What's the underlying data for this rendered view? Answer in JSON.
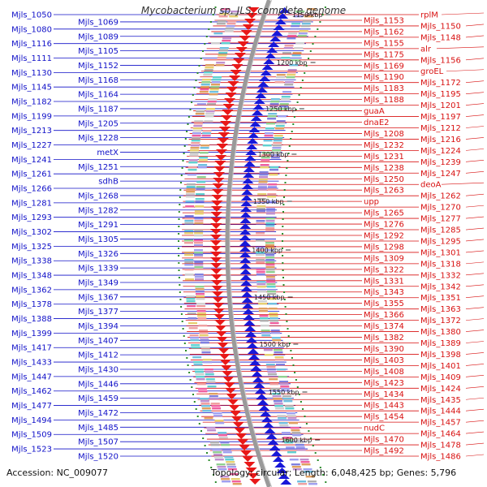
{
  "title": "Mycobacterium sp. JLS, complete genome",
  "footer": {
    "accession": "Accession: NC_009077",
    "summary": "Topology: circular; Length: 6,048,425 bp; Genes: 5,796"
  },
  "colors": {
    "forward": "#e81818",
    "reverse": "#1818d8",
    "leftLabel": "#1010c8",
    "rightLabel": "#d81010",
    "backbone": "#888888",
    "tick": "#2a8a2a"
  },
  "kbp_ticks": [
    "1150 kbp",
    "1200 kbp",
    "1250 kbp",
    "1300 kbp",
    "1350 kbp",
    "1400 kbp",
    "1450 kbp",
    "1500 kbp",
    "1550 kbp",
    "1600 kbp"
  ],
  "left_labels": [
    "Mjls_1050",
    "Mjls_1069",
    "Mjls_1080",
    "Mjls_1089",
    "Mjls_1116",
    "Mjls_1105",
    "Mjls_1111",
    "Mjls_1152",
    "Mjls_1130",
    "Mjls_1168",
    "Mjls_1145",
    "Mjls_1164",
    "Mjls_1182",
    "Mjls_1187",
    "Mjls_1199",
    "Mjls_1205",
    "Mjls_1213",
    "Mjls_1228",
    "Mjls_1227",
    "metX",
    "Mjls_1241",
    "Mjls_1251",
    "Mjls_1261",
    "sdhB",
    "Mjls_1266",
    "Mjls_1268",
    "Mjls_1281",
    "Mjls_1282",
    "Mjls_1293",
    "Mjls_1291",
    "Mjls_1302",
    "Mjls_1305",
    "Mjls_1325",
    "Mjls_1326",
    "Mjls_1338",
    "Mjls_1339",
    "Mjls_1348",
    "Mjls_1349",
    "Mjls_1362",
    "Mjls_1367",
    "Mjls_1378",
    "Mjls_1377",
    "Mjls_1388",
    "Mjls_1394",
    "Mjls_1399",
    "Mjls_1407",
    "Mjls_1417",
    "Mjls_1412",
    "Mjls_1433",
    "Mjls_1430",
    "Mjls_1447",
    "Mjls_1446",
    "Mjls_1462",
    "Mjls_1459",
    "Mjls_1477",
    "Mjls_1472",
    "Mjls_1494",
    "Mjls_1485",
    "Mjls_1509",
    "Mjls_1507",
    "Mjls_1523",
    "Mjls_1520"
  ],
  "right_labels": [
    "rplM",
    "Mjls_1153",
    "Mjls_1150",
    "Mjls_1162",
    "Mjls_1148",
    "Mjls_1155",
    "alr",
    "Mjls_1175",
    "Mjls_1156",
    "Mjls_1169",
    "groEL",
    "Mjls_1190",
    "Mjls_1172",
    "Mjls_1183",
    "Mjls_1195",
    "Mjls_1188",
    "Mjls_1201",
    "guaA",
    "Mjls_1197",
    "dnaE2",
    "Mjls_1212",
    "Mjls_1208",
    "Mjls_1216",
    "Mjls_1232",
    "Mjls_1224",
    "Mjls_1231",
    "Mjls_1239",
    "Mjls_1238",
    "Mjls_1247",
    "Mjls_1250",
    "deoA",
    "Mjls_1263",
    "Mjls_1262",
    "upp",
    "Mjls_1270",
    "Mjls_1265",
    "Mjls_1277",
    "Mjls_1276",
    "Mjls_1285",
    "Mjls_1292",
    "Mjls_1295",
    "Mjls_1298",
    "Mjls_1301",
    "Mjls_1309",
    "Mjls_1318",
    "Mjls_1322",
    "Mjls_1332",
    "Mjls_1331",
    "Mjls_1342",
    "Mjls_1343",
    "Mjls_1351",
    "Mjls_1355",
    "Mjls_1363",
    "Mjls_1366",
    "Mjls_1372",
    "Mjls_1374",
    "Mjls_1380",
    "Mjls_1382",
    "Mjls_1389",
    "Mjls_1390",
    "Mjls_1398",
    "Mjls_1403",
    "Mjls_1401",
    "Mjls_1408",
    "Mjls_1409",
    "Mjls_1423",
    "Mjls_1424",
    "Mjls_1434",
    "Mjls_1435",
    "Mjls_1443",
    "Mjls_1444",
    "Mjls_1454",
    "Mjls_1457",
    "nudC",
    "Mjls_1464",
    "Mjls_1470",
    "Mjls_1478",
    "Mjls_1492",
    "Mjls_1486"
  ]
}
